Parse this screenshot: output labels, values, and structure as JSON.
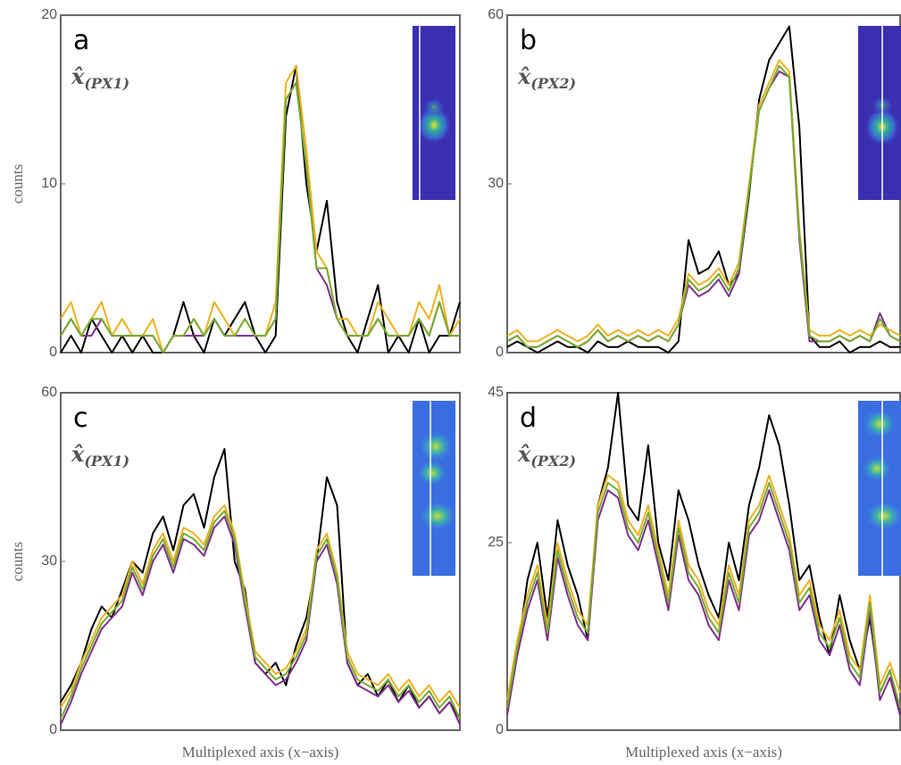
{
  "chart_data": [
    {
      "type": "line",
      "panel_label": "a",
      "annotation_symbol": "x̂",
      "annotation_subscript": "(PX1)",
      "ylabel": "counts",
      "ylim": [
        0,
        20
      ],
      "yticks": [
        0,
        10,
        20
      ],
      "series": [
        {
          "color": "#000000",
          "values": [
            0,
            1,
            0,
            2,
            1,
            0,
            1,
            0,
            1,
            0,
            0,
            1,
            3,
            1,
            0,
            2,
            1,
            2,
            3,
            1,
            0,
            1,
            14,
            17,
            10,
            6,
            9,
            3,
            1,
            0,
            2,
            4,
            0,
            1,
            0,
            2,
            0,
            1,
            1,
            3
          ]
        },
        {
          "color": "#7e2f8e",
          "values": [
            1,
            2,
            1,
            1,
            2,
            1,
            1,
            1,
            1,
            1,
            0,
            1,
            1,
            1,
            1,
            2,
            1,
            1,
            1,
            1,
            1,
            2,
            15,
            16,
            11,
            5,
            4,
            2,
            1,
            1,
            1,
            2,
            1,
            1,
            1,
            2,
            1,
            3,
            1,
            1
          ]
        },
        {
          "color": "#edb120",
          "values": [
            2,
            3,
            1,
            2,
            3,
            1,
            2,
            1,
            1,
            2,
            0,
            1,
            1,
            2,
            1,
            3,
            2,
            1,
            2,
            1,
            1,
            3,
            16,
            17,
            12,
            6,
            5,
            2,
            2,
            1,
            1,
            3,
            2,
            1,
            1,
            3,
            2,
            4,
            1,
            2
          ]
        },
        {
          "color": "#77ac30",
          "values": [
            1,
            2,
            1,
            2,
            2,
            1,
            1,
            1,
            1,
            1,
            0,
            1,
            1,
            2,
            1,
            2,
            1,
            1,
            2,
            1,
            1,
            2,
            15,
            16,
            11,
            5,
            5,
            2,
            1,
            1,
            1,
            2,
            1,
            1,
            1,
            2,
            1,
            3,
            1,
            1
          ]
        }
      ]
    },
    {
      "type": "line",
      "panel_label": "b",
      "annotation_symbol": "x̂",
      "annotation_subscript": "(PX2)",
      "ylim": [
        0,
        60
      ],
      "yticks": [
        0,
        30,
        60
      ],
      "series": [
        {
          "color": "#000000",
          "values": [
            1,
            2,
            1,
            0,
            1,
            2,
            1,
            1,
            0,
            2,
            1,
            1,
            2,
            1,
            1,
            1,
            0,
            2,
            20,
            14,
            15,
            18,
            12,
            14,
            28,
            45,
            52,
            55,
            58,
            40,
            3,
            1,
            1,
            2,
            0,
            1,
            1,
            2,
            1,
            1
          ]
        },
        {
          "color": "#7e2f8e",
          "values": [
            2,
            3,
            1,
            1,
            2,
            3,
            2,
            1,
            2,
            4,
            2,
            3,
            2,
            3,
            2,
            3,
            2,
            5,
            12,
            10,
            11,
            13,
            10,
            14,
            29,
            43,
            47,
            50,
            49,
            20,
            2,
            2,
            2,
            3,
            2,
            3,
            2,
            7,
            3,
            2
          ]
        },
        {
          "color": "#edb120",
          "values": [
            3,
            4,
            2,
            2,
            3,
            4,
            3,
            2,
            3,
            5,
            3,
            4,
            3,
            4,
            3,
            4,
            3,
            6,
            14,
            12,
            13,
            15,
            12,
            16,
            30,
            44,
            48,
            52,
            50,
            22,
            4,
            3,
            3,
            4,
            3,
            4,
            3,
            5,
            4,
            3
          ]
        },
        {
          "color": "#77ac30",
          "values": [
            2,
            3,
            1,
            1,
            2,
            3,
            2,
            1,
            2,
            4,
            2,
            3,
            2,
            3,
            2,
            3,
            2,
            5,
            13,
            11,
            12,
            14,
            11,
            15,
            29,
            43,
            47,
            51,
            49,
            21,
            3,
            2,
            2,
            3,
            2,
            3,
            2,
            6,
            3,
            2
          ]
        }
      ]
    },
    {
      "type": "line",
      "panel_label": "c",
      "annotation_symbol": "x̂",
      "annotation_subscript": "(PX1)",
      "ylabel": "counts",
      "xlabel": "Multiplexed axis (x−axis)",
      "ylim": [
        0,
        60
      ],
      "yticks": [
        0,
        30,
        60
      ],
      "series": [
        {
          "color": "#000000",
          "values": [
            5,
            8,
            12,
            18,
            22,
            20,
            25,
            30,
            28,
            35,
            38,
            32,
            40,
            42,
            36,
            45,
            50,
            30,
            25,
            12,
            10,
            12,
            8,
            15,
            20,
            30,
            45,
            40,
            12,
            8,
            10,
            6,
            9,
            5,
            8,
            4,
            6,
            3,
            5,
            2
          ]
        },
        {
          "color": "#7e2f8e",
          "values": [
            1,
            5,
            10,
            14,
            18,
            20,
            22,
            28,
            24,
            30,
            33,
            28,
            34,
            33,
            31,
            36,
            38,
            33,
            22,
            12,
            10,
            8,
            9,
            12,
            16,
            30,
            33,
            26,
            12,
            8,
            7,
            6,
            8,
            5,
            7,
            4,
            6,
            3,
            5,
            1
          ]
        },
        {
          "color": "#edb120",
          "values": [
            4,
            7,
            12,
            16,
            20,
            22,
            24,
            30,
            26,
            32,
            35,
            30,
            36,
            35,
            33,
            38,
            40,
            35,
            24,
            14,
            12,
            10,
            11,
            14,
            18,
            32,
            35,
            28,
            14,
            10,
            9,
            8,
            10,
            7,
            9,
            6,
            8,
            5,
            7,
            4
          ]
        },
        {
          "color": "#77ac30",
          "values": [
            2,
            6,
            11,
            15,
            19,
            21,
            23,
            29,
            25,
            31,
            34,
            29,
            35,
            34,
            32,
            37,
            39,
            34,
            23,
            13,
            11,
            9,
            10,
            13,
            17,
            31,
            34,
            27,
            13,
            9,
            8,
            7,
            9,
            6,
            8,
            5,
            7,
            4,
            6,
            2
          ]
        }
      ]
    },
    {
      "type": "line",
      "panel_label": "d",
      "annotation_symbol": "x̂",
      "annotation_subscript": "(PX2)",
      "xlabel": "Multiplexed axis (x−axis)",
      "ylim": [
        0,
        45
      ],
      "yticks": [
        0,
        25,
        45
      ],
      "series": [
        {
          "color": "#000000",
          "values": [
            3,
            10,
            20,
            25,
            15,
            28,
            22,
            18,
            12,
            30,
            35,
            45,
            30,
            28,
            38,
            25,
            20,
            32,
            28,
            22,
            18,
            15,
            25,
            20,
            30,
            35,
            42,
            38,
            30,
            20,
            22,
            15,
            10,
            18,
            12,
            8,
            15,
            5,
            8,
            2
          ]
        },
        {
          "color": "#7e2f8e",
          "values": [
            2,
            10,
            16,
            20,
            12,
            23,
            18,
            14,
            12,
            28,
            32,
            31,
            26,
            24,
            28,
            22,
            16,
            26,
            20,
            18,
            14,
            12,
            20,
            16,
            26,
            28,
            32,
            28,
            24,
            16,
            18,
            12,
            10,
            14,
            8,
            6,
            16,
            4,
            7,
            2
          ]
        },
        {
          "color": "#edb120",
          "values": [
            4,
            12,
            18,
            22,
            14,
            25,
            20,
            16,
            14,
            30,
            34,
            33,
            28,
            26,
            30,
            24,
            18,
            28,
            22,
            20,
            16,
            14,
            22,
            18,
            28,
            30,
            34,
            30,
            26,
            18,
            20,
            14,
            12,
            16,
            10,
            8,
            18,
            6,
            9,
            5
          ]
        },
        {
          "color": "#77ac30",
          "values": [
            3,
            11,
            17,
            21,
            13,
            24,
            19,
            15,
            13,
            29,
            33,
            32,
            27,
            25,
            29,
            23,
            17,
            27,
            21,
            19,
            15,
            13,
            21,
            17,
            27,
            29,
            33,
            29,
            25,
            17,
            19,
            13,
            11,
            15,
            9,
            7,
            17,
            5,
            8,
            3
          ]
        }
      ]
    }
  ]
}
